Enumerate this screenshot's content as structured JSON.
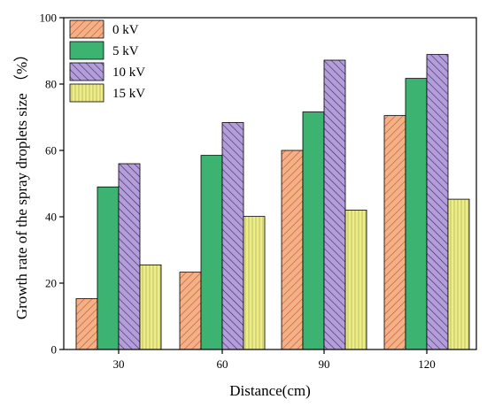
{
  "chart_data": {
    "type": "bar",
    "xlabel": "Distance(cm)",
    "ylabel": "Growth rate of the spray droplets size （%）",
    "categories": [
      "30",
      "60",
      "90",
      "120"
    ],
    "ylim": [
      0,
      100
    ],
    "yticks": [
      "0",
      "20",
      "40",
      "60",
      "80",
      "100"
    ],
    "legend_position": "top-left",
    "grid": false,
    "series": [
      {
        "name": "0 kV",
        "values": [
          15.3,
          23.3,
          60.0,
          70.5
        ],
        "color": "#f4b183",
        "pattern": "hatch-diagonal-right"
      },
      {
        "name": "5 kV",
        "values": [
          49.0,
          58.5,
          71.6,
          81.7
        ],
        "color": "#3cb371",
        "pattern": "solid"
      },
      {
        "name": "10 kV",
        "values": [
          56.0,
          68.4,
          87.2,
          88.9
        ],
        "color": "#b39ddb",
        "pattern": "hatch-diagonal-left"
      },
      {
        "name": "15 kV",
        "values": [
          25.5,
          40.1,
          42.0,
          45.3
        ],
        "color": "#eeee88",
        "pattern": "vertical-lines"
      }
    ]
  }
}
